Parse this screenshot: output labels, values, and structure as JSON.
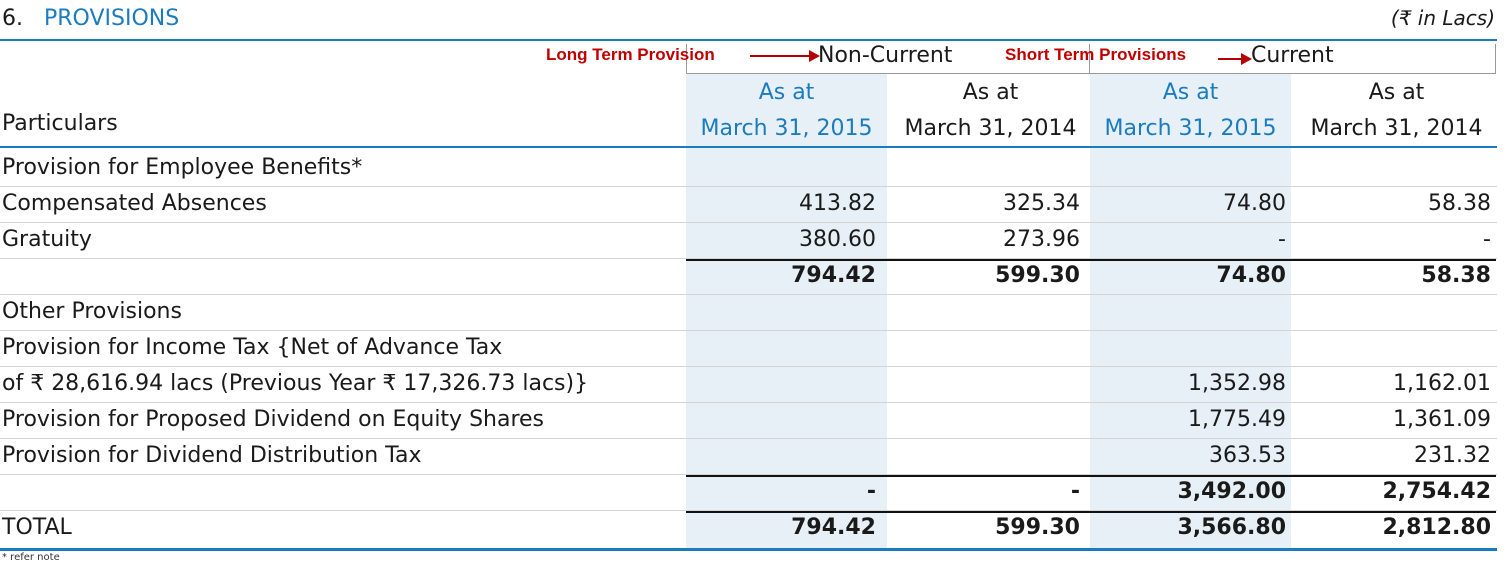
{
  "header": {
    "section_number": "6.",
    "section_title": "PROVISIONS",
    "units": "(₹ in Lacs)"
  },
  "annotations": {
    "long_term": "Long Term Provision",
    "short_term": "Short Term Provisions"
  },
  "column_groups": {
    "non_current": "Non-Current",
    "current": "Current"
  },
  "columns": {
    "particulars": "Particulars",
    "as_at": "As at",
    "date_2015": "March 31, 2015",
    "date_2014": "March 31, 2014"
  },
  "rows": [
    {
      "label": "Provision for Employee Benefits*",
      "values": [
        "",
        "",
        "",
        ""
      ],
      "bold": true
    },
    {
      "label": "Compensated Absences",
      "values": [
        "413.82",
        "325.34",
        "74.80",
        "58.38"
      ]
    },
    {
      "label": "Gratuity",
      "values": [
        "380.60",
        "273.96",
        "-",
        "-"
      ]
    },
    {
      "label": "",
      "values": [
        "794.42",
        "599.30",
        "74.80",
        "58.38"
      ],
      "subtotal": true
    },
    {
      "label": "Other Provisions",
      "values": [
        "",
        "",
        "",
        ""
      ],
      "bold": true
    },
    {
      "label": "Provision for Income Tax {Net of Advance Tax",
      "values": [
        "",
        "",
        "",
        ""
      ]
    },
    {
      "label": "of ₹ 28,616.94 lacs (Previous Year ₹ 17,326.73 lacs)}",
      "values": [
        "",
        "",
        "1,352.98",
        "1,162.01"
      ]
    },
    {
      "label": "Provision for Proposed Dividend on Equity Shares",
      "values": [
        "",
        "",
        "1,775.49",
        "1,361.09"
      ]
    },
    {
      "label": "Provision for Dividend Distribution Tax",
      "values": [
        "",
        "",
        "363.53",
        "231.32"
      ]
    },
    {
      "label": "",
      "values": [
        "-",
        "-",
        "3,492.00",
        "2,754.42"
      ],
      "subtotal": true
    },
    {
      "label": "TOTAL",
      "values": [
        "794.42",
        "599.30",
        "3,566.80",
        "2,812.80"
      ],
      "total": true
    }
  ],
  "footnote": "* refer note"
}
